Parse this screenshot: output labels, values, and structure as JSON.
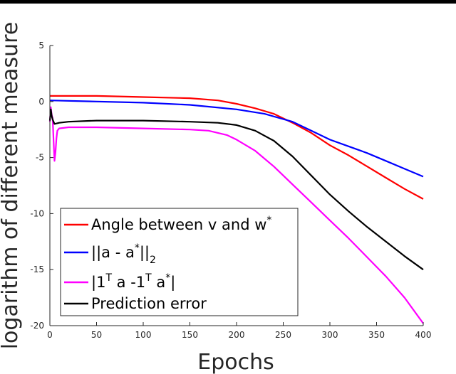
{
  "chart_data": {
    "type": "line",
    "title": "",
    "xlabel": "Epochs",
    "ylabel": "logarithm of different measure",
    "xlim": [
      0,
      400
    ],
    "ylim": [
      -20,
      5
    ],
    "xticks": [
      "0",
      "50",
      "100",
      "150",
      "200",
      "250",
      "300",
      "350",
      "400"
    ],
    "yticks": [
      "5",
      "0",
      "-5",
      "-10",
      "-15",
      "-20"
    ],
    "grid": false,
    "legend_position": "bottom-left",
    "series": [
      {
        "name": "Angle between v and w*",
        "legend": {
          "base": "Angle between v and w",
          "sup": "*",
          "sub": "",
          "tail": ""
        },
        "color": "#ff0000",
        "points": [
          [
            0,
            0.5
          ],
          [
            50,
            0.5
          ],
          [
            100,
            0.4
          ],
          [
            150,
            0.3
          ],
          [
            180,
            0.1
          ],
          [
            200,
            -0.2
          ],
          [
            220,
            -0.6
          ],
          [
            240,
            -1.1
          ],
          [
            260,
            -1.9
          ],
          [
            280,
            -2.8
          ],
          [
            300,
            -3.9
          ],
          [
            320,
            -4.8
          ],
          [
            340,
            -5.8
          ],
          [
            360,
            -6.8
          ],
          [
            380,
            -7.8
          ],
          [
            400,
            -8.7
          ]
        ]
      },
      {
        "name": "||a - a*||2",
        "legend": {
          "base": "||a - a",
          "sup": "*",
          "sub": "2",
          "tail": "||"
        },
        "color": "#0000ff",
        "points": [
          [
            0,
            0.1
          ],
          [
            50,
            0
          ],
          [
            100,
            -0.1
          ],
          [
            150,
            -0.3
          ],
          [
            200,
            -0.7
          ],
          [
            230,
            -1.1
          ],
          [
            260,
            -1.8
          ],
          [
            280,
            -2.6
          ],
          [
            300,
            -3.4
          ],
          [
            320,
            -4.0
          ],
          [
            340,
            -4.6
          ],
          [
            360,
            -5.3
          ],
          [
            380,
            -6.0
          ],
          [
            400,
            -6.7
          ]
        ]
      },
      {
        "name": "|1T a -1T a*|",
        "legend": {
          "base": "|1",
          "sup": "T",
          "mid": " a -1",
          "sup2": "T",
          "mid2": " a",
          "sup3": "*",
          "tail": "|"
        },
        "color": "#ff00ff",
        "points": [
          [
            0,
            -1.8
          ],
          [
            1,
            -0.5
          ],
          [
            2,
            -1.2
          ],
          [
            3,
            -1.5
          ],
          [
            4,
            -3.5
          ],
          [
            5,
            -5.3
          ],
          [
            6,
            -4.5
          ],
          [
            7,
            -3.3
          ],
          [
            8,
            -2.6
          ],
          [
            10,
            -2.4
          ],
          [
            20,
            -2.3
          ],
          [
            50,
            -2.3
          ],
          [
            100,
            -2.4
          ],
          [
            150,
            -2.5
          ],
          [
            170,
            -2.6
          ],
          [
            190,
            -3.0
          ],
          [
            200,
            -3.4
          ],
          [
            220,
            -4.4
          ],
          [
            240,
            -5.8
          ],
          [
            260,
            -7.4
          ],
          [
            280,
            -9.0
          ],
          [
            300,
            -10.6
          ],
          [
            320,
            -12.2
          ],
          [
            340,
            -13.9
          ],
          [
            360,
            -15.6
          ],
          [
            380,
            -17.5
          ],
          [
            400,
            -19.8
          ]
        ]
      },
      {
        "name": "Prediction error",
        "legend": {
          "base": "Prediction error",
          "sup": "",
          "sub": "",
          "tail": ""
        },
        "color": "#000000",
        "points": [
          [
            0,
            -1.7
          ],
          [
            1,
            -0.7
          ],
          [
            2,
            -1.3
          ],
          [
            3,
            -1.6
          ],
          [
            5,
            -2.0
          ],
          [
            10,
            -1.9
          ],
          [
            20,
            -1.8
          ],
          [
            50,
            -1.7
          ],
          [
            100,
            -1.7
          ],
          [
            150,
            -1.8
          ],
          [
            180,
            -1.9
          ],
          [
            200,
            -2.1
          ],
          [
            220,
            -2.6
          ],
          [
            240,
            -3.5
          ],
          [
            260,
            -4.9
          ],
          [
            280,
            -6.6
          ],
          [
            300,
            -8.3
          ],
          [
            320,
            -9.8
          ],
          [
            340,
            -11.2
          ],
          [
            360,
            -12.5
          ],
          [
            380,
            -13.8
          ],
          [
            400,
            -15.0
          ]
        ]
      }
    ]
  }
}
